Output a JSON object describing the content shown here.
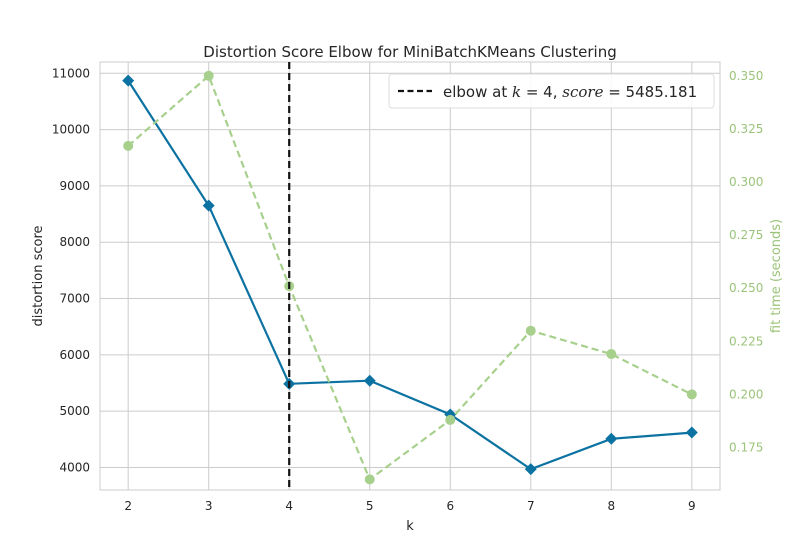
{
  "chart_data": {
    "type": "line",
    "title": "Distortion Score Elbow for MiniBatchKMeans Clustering",
    "xlabel": "k",
    "ylabel": "distortion score",
    "y2label": "fit time (seconds)",
    "x": [
      2,
      3,
      4,
      5,
      6,
      7,
      8,
      9
    ],
    "xlim": [
      1.65,
      9.35
    ],
    "ylim": [
      3600,
      11200
    ],
    "y2lim": [
      0.155,
      0.3565
    ],
    "yticks": [
      4000,
      5000,
      6000,
      7000,
      8000,
      9000,
      10000,
      11000
    ],
    "y2ticks": [
      "0.175",
      "0.200",
      "0.225",
      "0.250",
      "0.275",
      "0.300",
      "0.325",
      "0.350"
    ],
    "grid": true,
    "series": [
      {
        "key": "distortion",
        "axis": "left",
        "color": "#0b72a2",
        "marker": "diamond",
        "values": [
          10870,
          8650,
          5485,
          5540,
          4940,
          3970,
          4510,
          4620
        ]
      },
      {
        "key": "fit_time",
        "axis": "right",
        "color": "#a8d08d",
        "marker": "circle",
        "dashed": true,
        "values": [
          0.317,
          0.35,
          0.251,
          0.16,
          0.188,
          0.23,
          0.219,
          0.2
        ]
      }
    ],
    "elbow": {
      "k": 4,
      "score": "5485.181",
      "legend_prefix": "elbow at ",
      "legend_k_symbol": "k",
      "legend_eq": " = 4, ",
      "legend_score_symbol": "score",
      "legend_score_eq": " = 5485.181",
      "legend_position": "top-right"
    }
  }
}
